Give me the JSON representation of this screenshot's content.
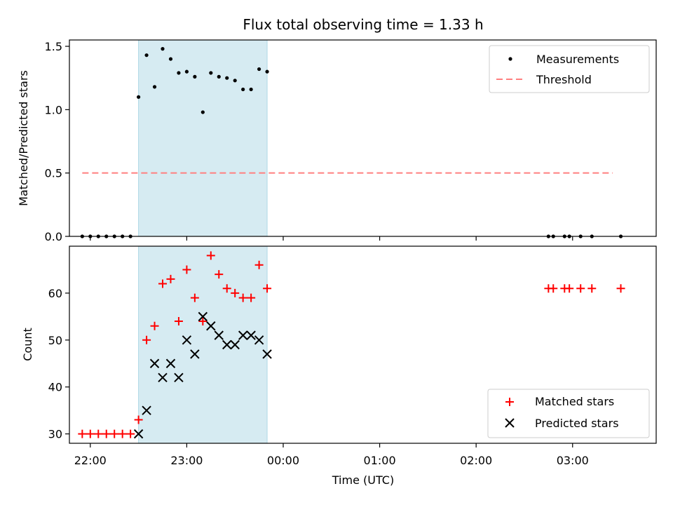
{
  "chart_data": [
    {
      "type": "scatter",
      "title": "Flux total observing time = 1.33 h",
      "xlabel": "",
      "ylabel": "Matched/Predicted stars",
      "xlim": [
        "21:47",
        "03:52"
      ],
      "ylim": [
        0,
        1.55
      ],
      "yticks": [
        "0.0",
        "0.5",
        "1.0",
        "1.5"
      ],
      "legend": "top-right",
      "shaded_interval": {
        "start": "22:30",
        "end": "23:50",
        "color": "#add8e6"
      },
      "series": [
        {
          "name": "Measurements",
          "marker": "dot",
          "color": "#000000",
          "x": [
            "21:55",
            "22:00",
            "22:05",
            "22:10",
            "22:15",
            "22:20",
            "22:25",
            "22:30",
            "22:35",
            "22:40",
            "22:45",
            "22:50",
            "22:55",
            "23:00",
            "23:05",
            "23:10",
            "23:15",
            "23:20",
            "23:25",
            "23:30",
            "23:35",
            "23:40",
            "23:45",
            "23:50",
            "02:45",
            "02:48",
            "02:55",
            "02:58",
            "03:05",
            "03:12",
            "03:30"
          ],
          "y": [
            0,
            0,
            0,
            0,
            0,
            0,
            0,
            1.1,
            1.43,
            1.18,
            1.48,
            1.4,
            1.29,
            1.3,
            1.26,
            0.98,
            1.29,
            1.26,
            1.25,
            1.23,
            1.16,
            1.16,
            1.32,
            1.3,
            0,
            0,
            0,
            0,
            0,
            0,
            0
          ]
        },
        {
          "name": "Threshold",
          "style": "dashed",
          "color": "#ff7f7f",
          "x": [
            "21:55",
            "03:25"
          ],
          "y": [
            0.5,
            0.5
          ]
        }
      ]
    },
    {
      "type": "scatter",
      "title": "",
      "xlabel": "Time (UTC)",
      "ylabel": "Count",
      "xlim": [
        "21:47",
        "03:52"
      ],
      "ylim": [
        28,
        70
      ],
      "xticks": [
        "22:00",
        "23:00",
        "00:00",
        "01:00",
        "02:00",
        "03:00"
      ],
      "yticks": [
        "30",
        "40",
        "50",
        "60"
      ],
      "legend": "bottom-right",
      "shaded_interval": {
        "start": "22:30",
        "end": "23:50",
        "color": "#add8e6"
      },
      "series": [
        {
          "name": "Matched stars",
          "marker": "plus",
          "color": "#ff0000",
          "x": [
            "21:55",
            "22:00",
            "22:05",
            "22:10",
            "22:15",
            "22:20",
            "22:25",
            "22:30",
            "22:35",
            "22:40",
            "22:45",
            "22:50",
            "22:55",
            "23:00",
            "23:05",
            "23:10",
            "23:15",
            "23:20",
            "23:25",
            "23:30",
            "23:35",
            "23:40",
            "23:45",
            "23:50",
            "02:45",
            "02:48",
            "02:55",
            "02:58",
            "03:05",
            "03:12",
            "03:30"
          ],
          "y": [
            30,
            30,
            30,
            30,
            30,
            30,
            30,
            33,
            50,
            53,
            62,
            63,
            54,
            65,
            59,
            54,
            68,
            64,
            61,
            60,
            59,
            59,
            66,
            61,
            61,
            61,
            61,
            61,
            61,
            61,
            61
          ]
        },
        {
          "name": "Predicted stars",
          "marker": "x",
          "color": "#000000",
          "x": [
            "22:30",
            "22:35",
            "22:40",
            "22:45",
            "22:50",
            "22:55",
            "23:00",
            "23:05",
            "23:10",
            "23:15",
            "23:20",
            "23:25",
            "23:30",
            "23:35",
            "23:40",
            "23:45",
            "23:50"
          ],
          "y": [
            30,
            35,
            45,
            42,
            45,
            42,
            50,
            47,
            55,
            53,
            51,
            49,
            49,
            51,
            51,
            50,
            47
          ]
        }
      ]
    }
  ]
}
